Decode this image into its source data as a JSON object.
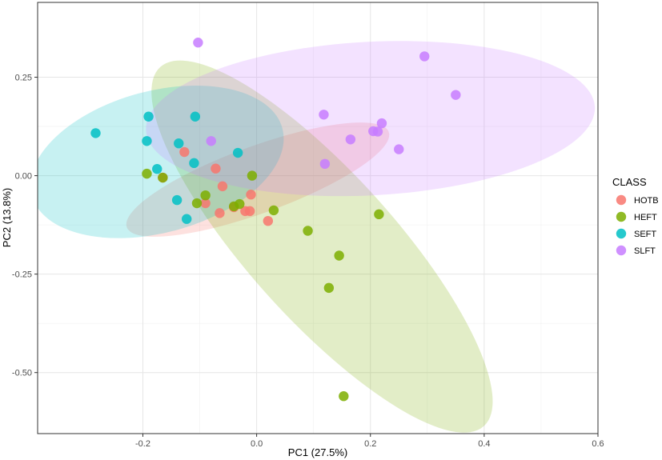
{
  "chart_data": {
    "type": "scatter",
    "xlabel": "PC1 (27.5%)",
    "ylabel": "PC2 (13.8%)",
    "xlim": [
      -0.385,
      0.6
    ],
    "ylim": [
      -0.655,
      0.44
    ],
    "x_ticks": [
      -0.2,
      0.0,
      0.2,
      0.4,
      0.6
    ],
    "x_tick_labels": [
      "-0.2",
      "0.0",
      "0.2",
      "0.4",
      "0.6"
    ],
    "y_ticks": [
      -0.5,
      -0.25,
      0.0,
      0.25
    ],
    "y_tick_labels": [
      "-0.50",
      "-0.25",
      "0.00",
      "0.25"
    ],
    "grid": true,
    "legend": {
      "title": "CLASS",
      "position": "right"
    },
    "series": [
      {
        "name": "HOTB",
        "color": "#F8766D",
        "points": [
          {
            "x": -0.127,
            "y": 0.06
          },
          {
            "x": -0.072,
            "y": 0.018
          },
          {
            "x": -0.165,
            "y": -0.005
          },
          {
            "x": -0.06,
            "y": -0.027
          },
          {
            "x": -0.01,
            "y": -0.048
          },
          {
            "x": -0.09,
            "y": -0.07
          },
          {
            "x": -0.04,
            "y": -0.08
          },
          {
            "x": -0.02,
            "y": -0.09
          },
          {
            "x": -0.065,
            "y": -0.095
          },
          {
            "x": -0.012,
            "y": -0.09
          },
          {
            "x": 0.02,
            "y": -0.115
          }
        ],
        "ellipse": {
          "cx": 0.002,
          "cy": -0.01,
          "rx": 0.245,
          "ry": 0.085,
          "angle_deg": -20
        }
      },
      {
        "name": "HEFT",
        "color": "#7CAE00",
        "points": [
          {
            "x": -0.193,
            "y": 0.005
          },
          {
            "x": -0.165,
            "y": -0.005
          },
          {
            "x": -0.09,
            "y": -0.05
          },
          {
            "x": -0.105,
            "y": -0.07
          },
          {
            "x": -0.03,
            "y": -0.072
          },
          {
            "x": -0.04,
            "y": -0.078
          },
          {
            "x": -0.008,
            "y": 0.0
          },
          {
            "x": 0.03,
            "y": -0.088
          },
          {
            "x": 0.09,
            "y": -0.14
          },
          {
            "x": 0.215,
            "y": -0.098
          },
          {
            "x": 0.145,
            "y": -0.203
          },
          {
            "x": 0.127,
            "y": -0.285
          },
          {
            "x": 0.153,
            "y": -0.56
          }
        ],
        "ellipse": {
          "cx": 0.115,
          "cy": -0.18,
          "rx": 0.425,
          "ry": 0.185,
          "angle_deg": 48
        }
      },
      {
        "name": "SEFT",
        "color": "#00BFC4",
        "points": [
          {
            "x": -0.283,
            "y": 0.108
          },
          {
            "x": -0.19,
            "y": 0.15
          },
          {
            "x": -0.108,
            "y": 0.15
          },
          {
            "x": -0.193,
            "y": 0.088
          },
          {
            "x": -0.137,
            "y": 0.082
          },
          {
            "x": -0.033,
            "y": 0.058
          },
          {
            "x": -0.11,
            "y": 0.032
          },
          {
            "x": -0.175,
            "y": 0.017
          },
          {
            "x": -0.14,
            "y": -0.062
          },
          {
            "x": -0.123,
            "y": -0.11
          }
        ],
        "ellipse": {
          "cx": -0.175,
          "cy": 0.035,
          "rx": 0.228,
          "ry": 0.18,
          "angle_deg": -15
        }
      },
      {
        "name": "SLFT",
        "color": "#C77CFF",
        "points": [
          {
            "x": -0.103,
            "y": 0.338
          },
          {
            "x": 0.295,
            "y": 0.303
          },
          {
            "x": 0.35,
            "y": 0.205
          },
          {
            "x": 0.118,
            "y": 0.155
          },
          {
            "x": 0.22,
            "y": 0.133
          },
          {
            "x": 0.205,
            "y": 0.113
          },
          {
            "x": 0.213,
            "y": 0.112
          },
          {
            "x": 0.165,
            "y": 0.092
          },
          {
            "x": 0.25,
            "y": 0.067
          },
          {
            "x": 0.12,
            "y": 0.03
          },
          {
            "x": -0.08,
            "y": 0.088
          }
        ],
        "ellipse": {
          "cx": 0.2,
          "cy": 0.145,
          "rx": 0.395,
          "ry": 0.195,
          "angle_deg": -3
        }
      }
    ]
  }
}
